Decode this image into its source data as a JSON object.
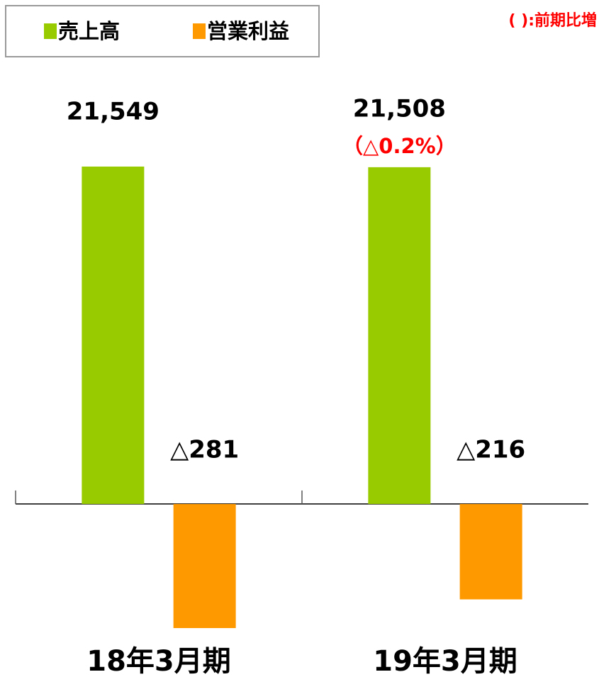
{
  "chart_data": {
    "type": "bar",
    "categories": [
      "18年3月期",
      "19年3月期"
    ],
    "series": [
      {
        "name": "売上高",
        "color": "#99cc00",
        "values": [
          21549,
          21508
        ],
        "value_labels": [
          "21,549",
          "21,508"
        ]
      },
      {
        "name": "営業利益",
        "color": "#ff9900",
        "axis": "y2",
        "values": [
          -281,
          -216
        ],
        "value_labels": [
          "△281",
          "△216"
        ]
      }
    ],
    "ylim": [
      -8560,
      27660
    ],
    "y2lim": [
      -303.5,
      981
    ],
    "annotations": [
      "（△0.2%）",
      "( ):前期比増"
    ],
    "annotation_color": "#ff0000",
    "legend": "top-left"
  }
}
